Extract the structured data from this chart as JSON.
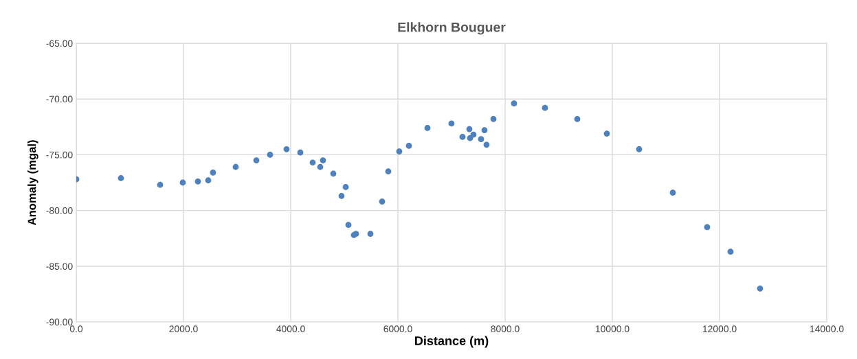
{
  "chart_data": {
    "type": "scatter",
    "title": "Elkhorn Bouguer",
    "xlabel": "Distance (m)",
    "ylabel": "Anomaly (mgal)",
    "x": [
      0,
      833,
      1564,
      1987,
      2269,
      2461,
      2551,
      2974,
      3359,
      3615,
      3923,
      4179,
      4410,
      4551,
      4602,
      4795,
      5026,
      4948,
      5077,
      5179,
      5218,
      5487,
      5705,
      5820,
      6025,
      6205,
      6551,
      6999,
      7205,
      7333,
      7346,
      7410,
      7551,
      7615,
      7653,
      7782,
      8166,
      8743,
      9346,
      9897,
      10500,
      11128,
      11769,
      12205,
      12756
    ],
    "series": [
      {
        "color": "#4f81bd",
        "values": [
          -77.2,
          -77.1,
          -77.7,
          -77.5,
          -77.4,
          -77.3,
          -76.6,
          -76.1,
          -75.5,
          -75.0,
          -74.5,
          -74.8,
          -75.7,
          -76.1,
          -75.5,
          -76.7,
          -77.9,
          -78.7,
          -81.3,
          -82.2,
          -82.1,
          -82.1,
          -79.2,
          -76.5,
          -74.7,
          -74.2,
          -72.6,
          -72.2,
          -73.4,
          -72.7,
          -73.5,
          -73.2,
          -73.6,
          -72.8,
          -74.1,
          -71.8,
          -70.4,
          -70.8,
          -71.8,
          -73.1,
          -74.5,
          -78.4,
          -81.5,
          -83.7,
          -87.0
        ]
      }
    ],
    "xlim": [
      0,
      14000
    ],
    "ylim": [
      -90,
      -65
    ],
    "xticks": [
      {
        "value": 0,
        "label": "0.0"
      },
      {
        "value": 2000,
        "label": "2000.0"
      },
      {
        "value": 4000,
        "label": "4000.0"
      },
      {
        "value": 6000,
        "label": "6000.0"
      },
      {
        "value": 8000,
        "label": "8000.0"
      },
      {
        "value": 10000,
        "label": "10000.0"
      },
      {
        "value": 12000,
        "label": "12000.0"
      },
      {
        "value": 14000,
        "label": "14000.0"
      }
    ],
    "yticks": [
      {
        "value": -90,
        "label": "-90.00"
      },
      {
        "value": -85,
        "label": "-85.00"
      },
      {
        "value": -80,
        "label": "-80.00"
      },
      {
        "value": -75,
        "label": "-75.00"
      },
      {
        "value": -70,
        "label": "-70.00"
      },
      {
        "value": -65,
        "label": "-65.00"
      }
    ],
    "grid": true,
    "marker": "circle"
  }
}
